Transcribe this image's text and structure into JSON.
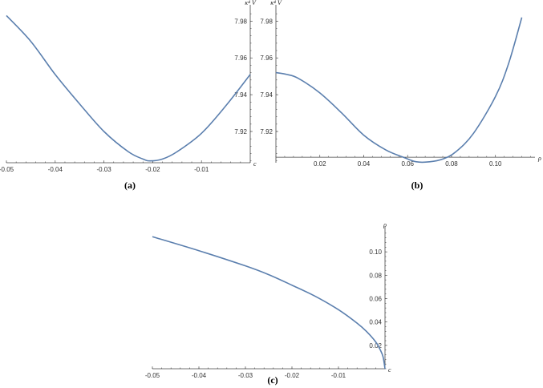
{
  "colors": {
    "curve": "#5b7fae",
    "axis": "#444444"
  },
  "chart_data": [
    {
      "id": "a",
      "type": "line",
      "panel_label": "(a)",
      "xlabel": "c",
      "ylabel": "κ⁴ V",
      "xlim": [
        -0.05,
        0.0
      ],
      "ylim": [
        7.903,
        7.988
      ],
      "axis_cross_y": 7.903,
      "y_axis_x": 0.0,
      "xticks": [
        -0.05,
        -0.04,
        -0.03,
        -0.02,
        -0.01
      ],
      "xtick_labels": [
        "-0.05",
        "-0.04",
        "-0.03",
        "-0.02",
        "-0.01"
      ],
      "yticks": [
        7.92,
        7.94,
        7.96,
        7.98
      ],
      "ytick_labels": [
        "7.92",
        "7.94",
        "7.96",
        "7.98"
      ],
      "series": [
        {
          "x": [
            -0.05,
            -0.045,
            -0.04,
            -0.035,
            -0.03,
            -0.025,
            -0.022,
            -0.0205,
            -0.018,
            -0.015,
            -0.01,
            -0.005,
            0.0
          ],
          "y": [
            7.983,
            7.969,
            7.951,
            7.935,
            7.92,
            7.909,
            7.905,
            7.904,
            7.905,
            7.909,
            7.919,
            7.934,
            7.951
          ]
        }
      ]
    },
    {
      "id": "b",
      "type": "line",
      "panel_label": "(b)",
      "xlabel": "ρ",
      "ylabel": "κ⁴ V",
      "xlim": [
        0.0,
        0.118
      ],
      "ylim": [
        7.903,
        7.988
      ],
      "axis_cross_y": 7.906,
      "y_axis_x": 0.0,
      "xticks": [
        0.02,
        0.04,
        0.06,
        0.08,
        0.1
      ],
      "xtick_labels": [
        "0.02",
        "0.04",
        "0.06",
        "0.08",
        "0.10"
      ],
      "yticks": [
        7.92,
        7.94,
        7.96,
        7.98
      ],
      "ytick_labels": [
        "7.92",
        "7.94",
        "7.96",
        "7.98"
      ],
      "series": [
        {
          "x": [
            0.0,
            0.005,
            0.01,
            0.02,
            0.03,
            0.04,
            0.05,
            0.058,
            0.064,
            0.07,
            0.076,
            0.082,
            0.09,
            0.1,
            0.106,
            0.112
          ],
          "y": [
            7.952,
            7.951,
            7.949,
            7.941,
            7.93,
            7.918,
            7.91,
            7.906,
            7.9035,
            7.9035,
            7.905,
            7.909,
            7.919,
            7.939,
            7.957,
            7.982
          ]
        }
      ]
    },
    {
      "id": "c",
      "type": "line",
      "panel_label": "(c)",
      "xlabel": "c",
      "ylabel": "ρ",
      "xlim": [
        -0.05,
        0.0
      ],
      "ylim": [
        0.0,
        0.12
      ],
      "axis_cross_y": 0.0,
      "y_axis_x": 0.0,
      "xticks": [
        -0.05,
        -0.04,
        -0.03,
        -0.02,
        -0.01
      ],
      "xtick_labels": [
        "-0.05",
        "-0.04",
        "-0.03",
        "-0.02",
        "-0.01"
      ],
      "yticks": [
        0.02,
        0.04,
        0.06,
        0.08,
        0.1
      ],
      "ytick_labels": [
        "0.02",
        "0.04",
        "0.06",
        "0.08",
        "0.10"
      ],
      "series": [
        {
          "x": [
            -0.05,
            -0.04,
            -0.03,
            -0.025,
            -0.02,
            -0.015,
            -0.01,
            -0.006,
            -0.004,
            -0.002,
            -0.001,
            -0.0004,
            0.0
          ],
          "y": [
            0.113,
            0.101,
            0.088,
            0.0805,
            0.0715,
            0.062,
            0.0505,
            0.039,
            0.032,
            0.023,
            0.016,
            0.01,
            0.0
          ]
        }
      ]
    }
  ]
}
